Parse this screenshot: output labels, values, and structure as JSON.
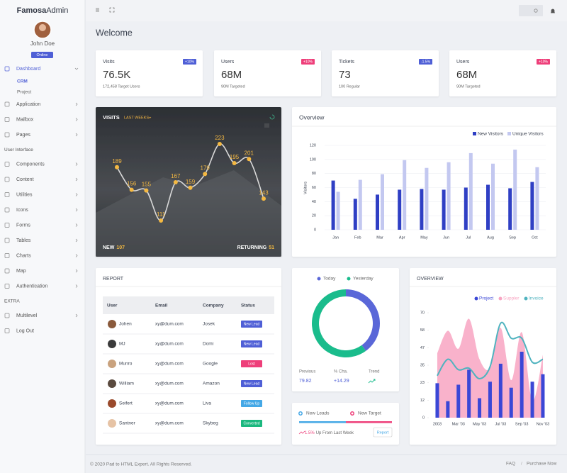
{
  "sidebar": {
    "brand_bold": "Famosa",
    "brand_light": "Admin",
    "user": "John Doe",
    "status": "Online",
    "menu": [
      {
        "label": "Dashboard",
        "children": [
          "CRM",
          "Project"
        ]
      },
      {
        "label": "Application"
      },
      {
        "label": "Mailbox"
      },
      {
        "label": "Pages"
      },
      {
        "section": "User Interface"
      },
      {
        "label": "Components"
      },
      {
        "label": "Content"
      },
      {
        "label": "Utilities"
      },
      {
        "label": "Icons"
      },
      {
        "label": "Forms"
      },
      {
        "label": "Tables"
      },
      {
        "label": "Charts"
      },
      {
        "label": "Map"
      },
      {
        "label": "Authentication"
      },
      {
        "section": "EXTRA"
      },
      {
        "label": "Multilevel"
      },
      {
        "label": "Log Out"
      }
    ]
  },
  "header": {
    "title": "Welcome"
  },
  "stats": [
    {
      "title": "Visits",
      "badge": "+10%",
      "badge_color": "#4f5fd6",
      "value": "76.5K",
      "sub": "172,458 Target Users"
    },
    {
      "title": "Users",
      "badge": "+10%",
      "badge_color": "#ee3f7a",
      "value": "68M",
      "sub": "90M Targeted"
    },
    {
      "title": "Tickets",
      "badge": "-1.5%",
      "badge_color": "#4f5fd6",
      "value": "73",
      "sub": "100 Regular"
    },
    {
      "title": "Users",
      "badge": "+10%",
      "badge_color": "#ee3f7a",
      "value": "68M",
      "sub": "90M Targeted"
    }
  ],
  "visits": {
    "type": "line",
    "title": "VISITS",
    "filter": "LAST WEEKS",
    "values": [
      189,
      156,
      155,
      111,
      167,
      159,
      179,
      223,
      195,
      201,
      143
    ],
    "color": "#f5b942",
    "new_label": "NEW",
    "new_value": 107,
    "returning_label": "RETURNING",
    "returning_value": 51
  },
  "overview": {
    "type": "bar",
    "title": "Overview",
    "categories": [
      "Jan",
      "Feb",
      "Mar",
      "Apr",
      "May",
      "Jun",
      "Jul",
      "Aug",
      "Sep",
      "Oct"
    ],
    "series": [
      {
        "name": "New Visitors",
        "color": "#2f3fc4",
        "values": [
          70,
          44,
          50,
          57,
          58,
          57,
          60,
          64,
          59,
          68
        ]
      },
      {
        "name": "Unique Visitors",
        "color": "#c3c8f0",
        "values": [
          54,
          71,
          79,
          99,
          88,
          96,
          109,
          94,
          114,
          89
        ]
      }
    ],
    "ylabel": "Visitors",
    "ylim": [
      0,
      120
    ],
    "yticks": [
      0,
      20,
      40,
      60,
      80,
      100,
      120
    ],
    "grid": true
  },
  "report": {
    "title": "REPORT",
    "columns": [
      "User",
      "Email",
      "Company",
      "Status"
    ],
    "rows": [
      {
        "cells": [
          "Johen",
          "xy@dum.com",
          "Josek",
          "New Lead"
        ],
        "color": "#4f5fd6"
      },
      {
        "cells": [
          "MJ",
          "xy@dum.com",
          "Domi",
          "New Lead"
        ],
        "color": "#4f5fd6"
      },
      {
        "cells": [
          "Munro",
          "xy@dum.com",
          "Google",
          "Lost"
        ],
        "color": "#ee3f7a"
      },
      {
        "cells": [
          "William",
          "xy@dum.com",
          "Amazon",
          "New Lead"
        ],
        "color": "#4f5fd6"
      },
      {
        "cells": [
          "Seifert",
          "xy@dum.com",
          "Liva",
          "Follow Up"
        ],
        "color": "#45a8e6"
      },
      {
        "cells": [
          "Santner",
          "xy@dum.com",
          "Skybeg",
          "Converted"
        ],
        "color": "#1bb87f"
      }
    ]
  },
  "donut": {
    "type": "pie",
    "series": [
      {
        "name": "Today",
        "color": "#5a67d8",
        "value": 40
      },
      {
        "name": "Yesterday",
        "color": "#1abc8c",
        "value": 60
      }
    ],
    "stats": [
      {
        "label": "Previous",
        "value": "79.82"
      },
      {
        "label": "% Cha.",
        "value": "+14.29"
      },
      {
        "label": "Trend"
      }
    ]
  },
  "leads": {
    "items": [
      {
        "name": "New Leads",
        "color": "#45a8e6"
      },
      {
        "name": "New Target",
        "color": "#ee3f7a"
      }
    ],
    "change": "1.5%",
    "change_text": "Up From Last Week",
    "button": "Report"
  },
  "mixed": {
    "type": "mixed",
    "title": "OVERVIEW",
    "categories": [
      "2003",
      null,
      "Mar '03",
      null,
      "May '03",
      null,
      "Jul '03",
      null,
      "Sep '03",
      null,
      "Nov '03"
    ],
    "series": [
      {
        "name": "Project",
        "kind": "bar",
        "color": "#3b47d6",
        "values": [
          23,
          11,
          22,
          32,
          13,
          24,
          36,
          20,
          44,
          24,
          29
        ]
      },
      {
        "name": "Suppler",
        "kind": "area",
        "color": "#f8a5c2",
        "values": [
          43,
          58,
          46,
          66,
          39,
          33,
          60,
          25,
          57,
          11,
          42
        ]
      },
      {
        "name": "Invoice",
        "kind": "line",
        "color": "#4fb3bf",
        "values": [
          28,
          39,
          32,
          33,
          26,
          34,
          63,
          53,
          53,
          37,
          39
        ]
      }
    ],
    "ylim": [
      0,
      70
    ],
    "yticks": [
      0,
      {
        "value": 11.67,
        "label": "12"
      },
      {
        "value": 23.33,
        "label": "23"
      },
      35,
      {
        "value": 46.67,
        "label": "47"
      },
      {
        "value": 58.33,
        "label": "58"
      },
      70
    ]
  },
  "footer": {
    "copyright": "© 2020 Pad to HTML Expert. All Rights Reserved.",
    "links": [
      "FAQ",
      "Purchase Now"
    ],
    "separator": "/"
  }
}
